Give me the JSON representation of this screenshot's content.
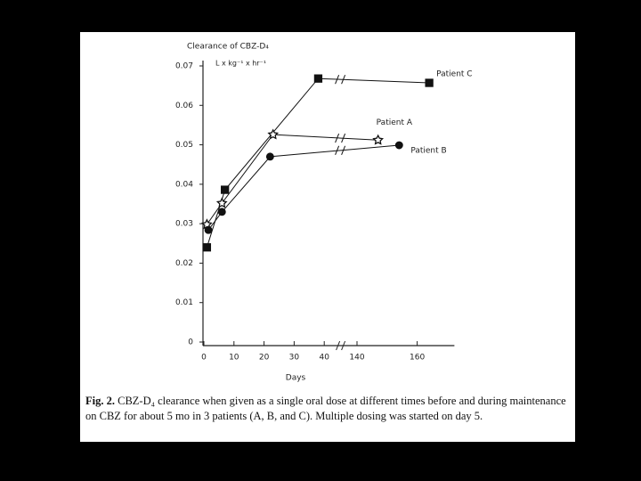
{
  "chart_data": {
    "type": "line",
    "title": "Clearance of CBZ-D₄",
    "unit_label": "L x kg⁻¹ x hr⁻¹",
    "xlabel": "Days",
    "figure_label": "Fig. 2.",
    "caption": "CBZ-D₄ clearance when given as a single oral dose at different times before and during maintenance on CBZ for about 5 mo in 3 patients (A, B, and C). Multiple dosing was started on day 5.",
    "xlim": [
      0,
      170
    ],
    "xbreak": [
      45,
      135
    ],
    "xticks": [
      0,
      10,
      20,
      30,
      40,
      140,
      160
    ],
    "ylim": [
      0,
      0.07
    ],
    "yticks": [
      0,
      0.01,
      0.02,
      0.03,
      0.04,
      0.05,
      0.06,
      0.07
    ],
    "series": [
      {
        "name": "Patient C",
        "color": "#111111",
        "marker": "square",
        "x": [
          1,
          7,
          38,
          164
        ],
        "values": [
          0.024,
          0.0386,
          0.0668,
          0.0657
        ]
      },
      {
        "name": "Patient A",
        "color": "#111111",
        "marker": "star",
        "x": [
          1,
          6,
          23,
          147
        ],
        "values": [
          0.0298,
          0.0352,
          0.0526,
          0.0512
        ]
      },
      {
        "name": "Patient B",
        "color": "#111111",
        "marker": "circle",
        "x": [
          1.5,
          6,
          22,
          154
        ],
        "values": [
          0.0284,
          0.033,
          0.047,
          0.0499
        ]
      }
    ]
  }
}
